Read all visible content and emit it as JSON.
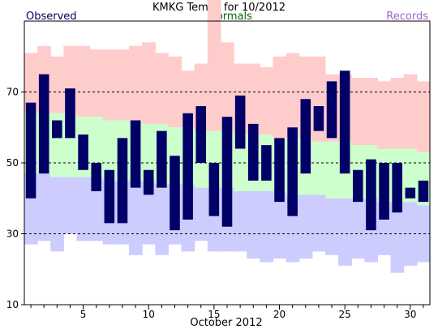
{
  "chart_data": {
    "type": "bar",
    "title": "KMKG Temps for 10/2012",
    "xlabel": "October 2012",
    "ylabel": "",
    "legend": [
      {
        "name": "Observed",
        "color": "#000066",
        "placement": "top-left"
      },
      {
        "name": "Normals",
        "color": "#006600",
        "placement": "top-center"
      },
      {
        "name": "Records",
        "color": "#9966cc",
        "placement": "top-right"
      }
    ],
    "colors": {
      "observed": "#000066",
      "record_high_band": "#ffcccc",
      "normal_band": "#ccffcc",
      "record_low_band": "#ccccff",
      "grid": "#000000"
    },
    "xlim": [
      0.5,
      31.5
    ],
    "ylim": [
      10,
      90
    ],
    "x_ticks": [
      5,
      10,
      15,
      20,
      25,
      30
    ],
    "y_ticks": [
      10,
      30,
      50,
      70
    ],
    "gridlines_y": [
      30,
      50,
      70
    ],
    "days": [
      1,
      2,
      3,
      4,
      5,
      6,
      7,
      8,
      9,
      10,
      11,
      12,
      13,
      14,
      15,
      16,
      17,
      18,
      19,
      20,
      21,
      22,
      23,
      24,
      25,
      26,
      27,
      28,
      29,
      30,
      31
    ],
    "record_high": [
      81,
      83,
      80,
      83,
      83,
      82,
      82,
      82,
      83,
      84,
      81,
      80,
      76,
      78,
      96,
      84,
      78,
      78,
      77,
      80,
      81,
      80,
      80,
      75,
      75,
      74,
      74,
      73,
      74,
      75,
      73
    ],
    "normal_high": [
      64,
      64,
      64,
      64,
      63,
      63,
      62,
      62,
      62,
      61,
      61,
      60,
      60,
      59,
      59,
      59,
      58,
      58,
      58,
      57,
      57,
      57,
      56,
      56,
      56,
      55,
      55,
      54,
      54,
      54,
      53
    ],
    "normal_low": [
      47,
      47,
      46,
      46,
      46,
      46,
      45,
      45,
      45,
      45,
      44,
      44,
      44,
      43,
      43,
      43,
      42,
      42,
      42,
      42,
      41,
      41,
      41,
      40,
      40,
      40,
      40,
      39,
      39,
      39,
      38
    ],
    "record_low": [
      27,
      28,
      25,
      30,
      28,
      28,
      27,
      27,
      24,
      27,
      24,
      27,
      25,
      28,
      25,
      25,
      25,
      23,
      22,
      23,
      22,
      23,
      25,
      24,
      21,
      23,
      22,
      24,
      19,
      21,
      22
    ],
    "observed_high": [
      67,
      75,
      62,
      71,
      58,
      50,
      48,
      57,
      62,
      48,
      59,
      52,
      64,
      66,
      50,
      63,
      69,
      61,
      55,
      57,
      60,
      68,
      66,
      73,
      76,
      48,
      51,
      50,
      50,
      43,
      45
    ],
    "observed_low": [
      40,
      47,
      57,
      57,
      48,
      42,
      33,
      33,
      43,
      41,
      43,
      31,
      34,
      50,
      35,
      32,
      54,
      45,
      45,
      39,
      35,
      47,
      59,
      57,
      47,
      39,
      31,
      34,
      36,
      40,
      39
    ]
  }
}
